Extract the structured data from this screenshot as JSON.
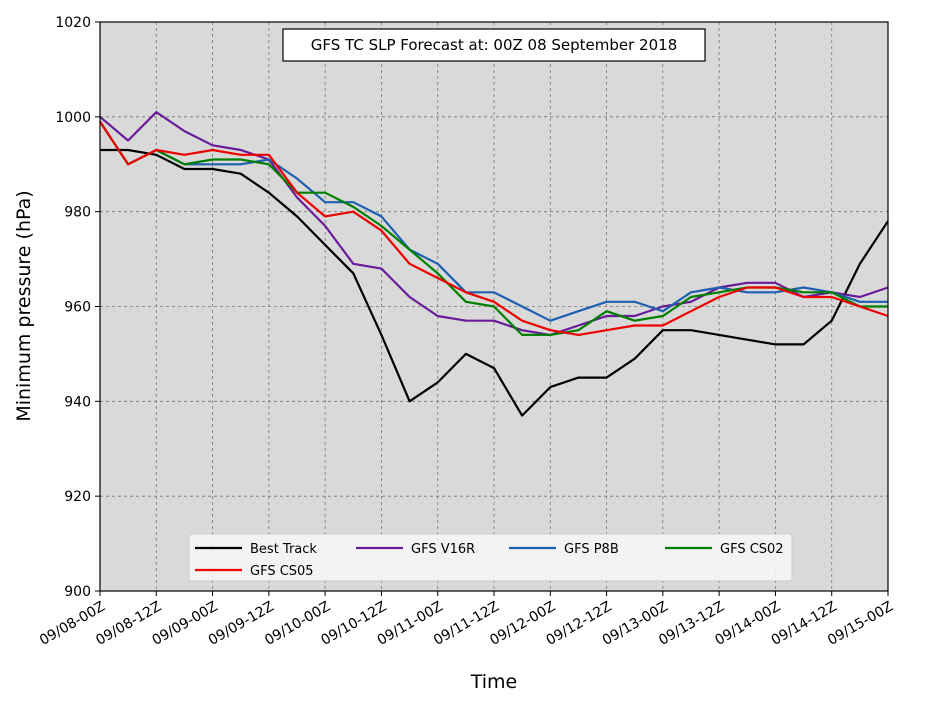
{
  "chart_data": {
    "type": "line",
    "title": "GFS TC SLP Forecast at: 00Z 08 September 2018",
    "xlabel": "Time",
    "ylabel": "Minimum pressure (hPa)",
    "ylim": [
      900,
      1020
    ],
    "y_ticks": [
      900,
      920,
      940,
      960,
      980,
      1000,
      1020
    ],
    "x_ticks": [
      "09/08-00Z",
      "09/08-12Z",
      "09/09-00Z",
      "09/09-12Z",
      "09/10-00Z",
      "09/10-12Z",
      "09/11-00Z",
      "09/11-12Z",
      "09/12-00Z",
      "09/12-12Z",
      "09/13-00Z",
      "09/13-12Z",
      "09/14-00Z",
      "09/14-12Z",
      "09/15-00Z"
    ],
    "x_hours": [
      0,
      6,
      12,
      18,
      24,
      30,
      36,
      42,
      48,
      54,
      60,
      66,
      72,
      78,
      84,
      90,
      96,
      102,
      108,
      114,
      120,
      126,
      132,
      138,
      144,
      150,
      156,
      162,
      168
    ],
    "grid": true,
    "legend_position": "lower-center",
    "series": [
      {
        "name": "Best Track",
        "color": "#000000",
        "values": [
          993,
          993,
          992,
          989,
          989,
          988,
          984,
          979,
          973,
          967,
          954,
          940,
          944,
          950,
          947,
          937,
          943,
          945,
          945,
          949,
          955,
          955,
          954,
          953,
          952,
          952,
          957,
          969,
          978
        ]
      },
      {
        "name": "GFS V16R",
        "color": "#6a1b9a",
        "values": [
          1000,
          995,
          1001,
          997,
          994,
          993,
          991,
          983,
          977,
          969,
          968,
          962,
          958,
          957,
          957,
          955,
          954,
          956,
          958,
          958,
          960,
          961,
          964,
          965,
          965,
          962,
          963,
          962,
          964
        ]
      },
      {
        "name": "GFS P8B",
        "color": "#1f5fb0",
        "values": [
          999,
          990,
          993,
          990,
          990,
          990,
          991,
          987,
          982,
          982,
          979,
          972,
          969,
          963,
          963,
          960,
          957,
          959,
          961,
          961,
          959,
          963,
          964,
          963,
          963,
          964,
          963,
          961,
          961
        ]
      },
      {
        "name": "GFS CS02",
        "color": "#008000",
        "values": [
          999,
          990,
          993,
          990,
          991,
          991,
          990,
          984,
          984,
          981,
          977,
          972,
          967,
          961,
          960,
          954,
          954,
          955,
          959,
          957,
          958,
          962,
          963,
          964,
          964,
          963,
          963,
          960,
          960
        ]
      },
      {
        "name": "GFS CS05",
        "color": "#ee0000",
        "values": [
          999,
          990,
          993,
          992,
          993,
          992,
          992,
          984,
          979,
          980,
          976,
          969,
          966,
          963,
          961,
          957,
          955,
          954,
          955,
          956,
          956,
          959,
          962,
          964,
          964,
          962,
          962,
          960,
          958
        ]
      }
    ]
  }
}
